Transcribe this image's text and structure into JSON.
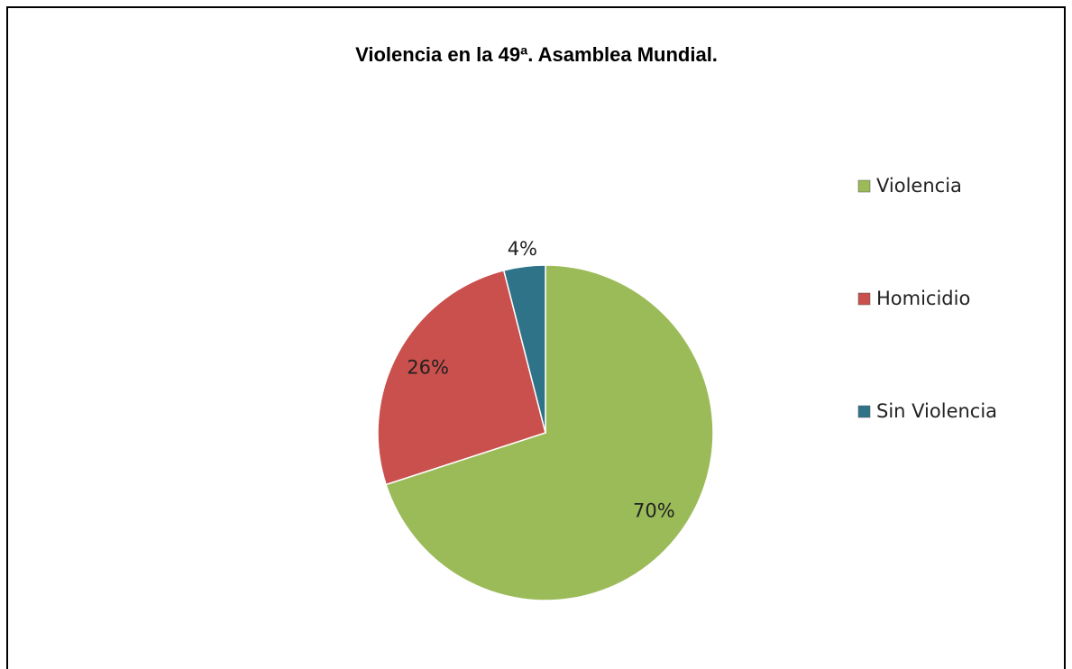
{
  "chart_data": {
    "type": "pie",
    "title": "Violencia en la 49ª. Asamblea Mundial.",
    "categories": [
      "Violencia",
      "Homicidio",
      "Sin Violencia"
    ],
    "values": [
      70,
      26,
      4
    ],
    "value_labels": [
      "70%",
      "26%",
      "4%"
    ],
    "colors": [
      "#9bbb59",
      "#c9504d",
      "#2f7389"
    ],
    "legend": "right"
  }
}
